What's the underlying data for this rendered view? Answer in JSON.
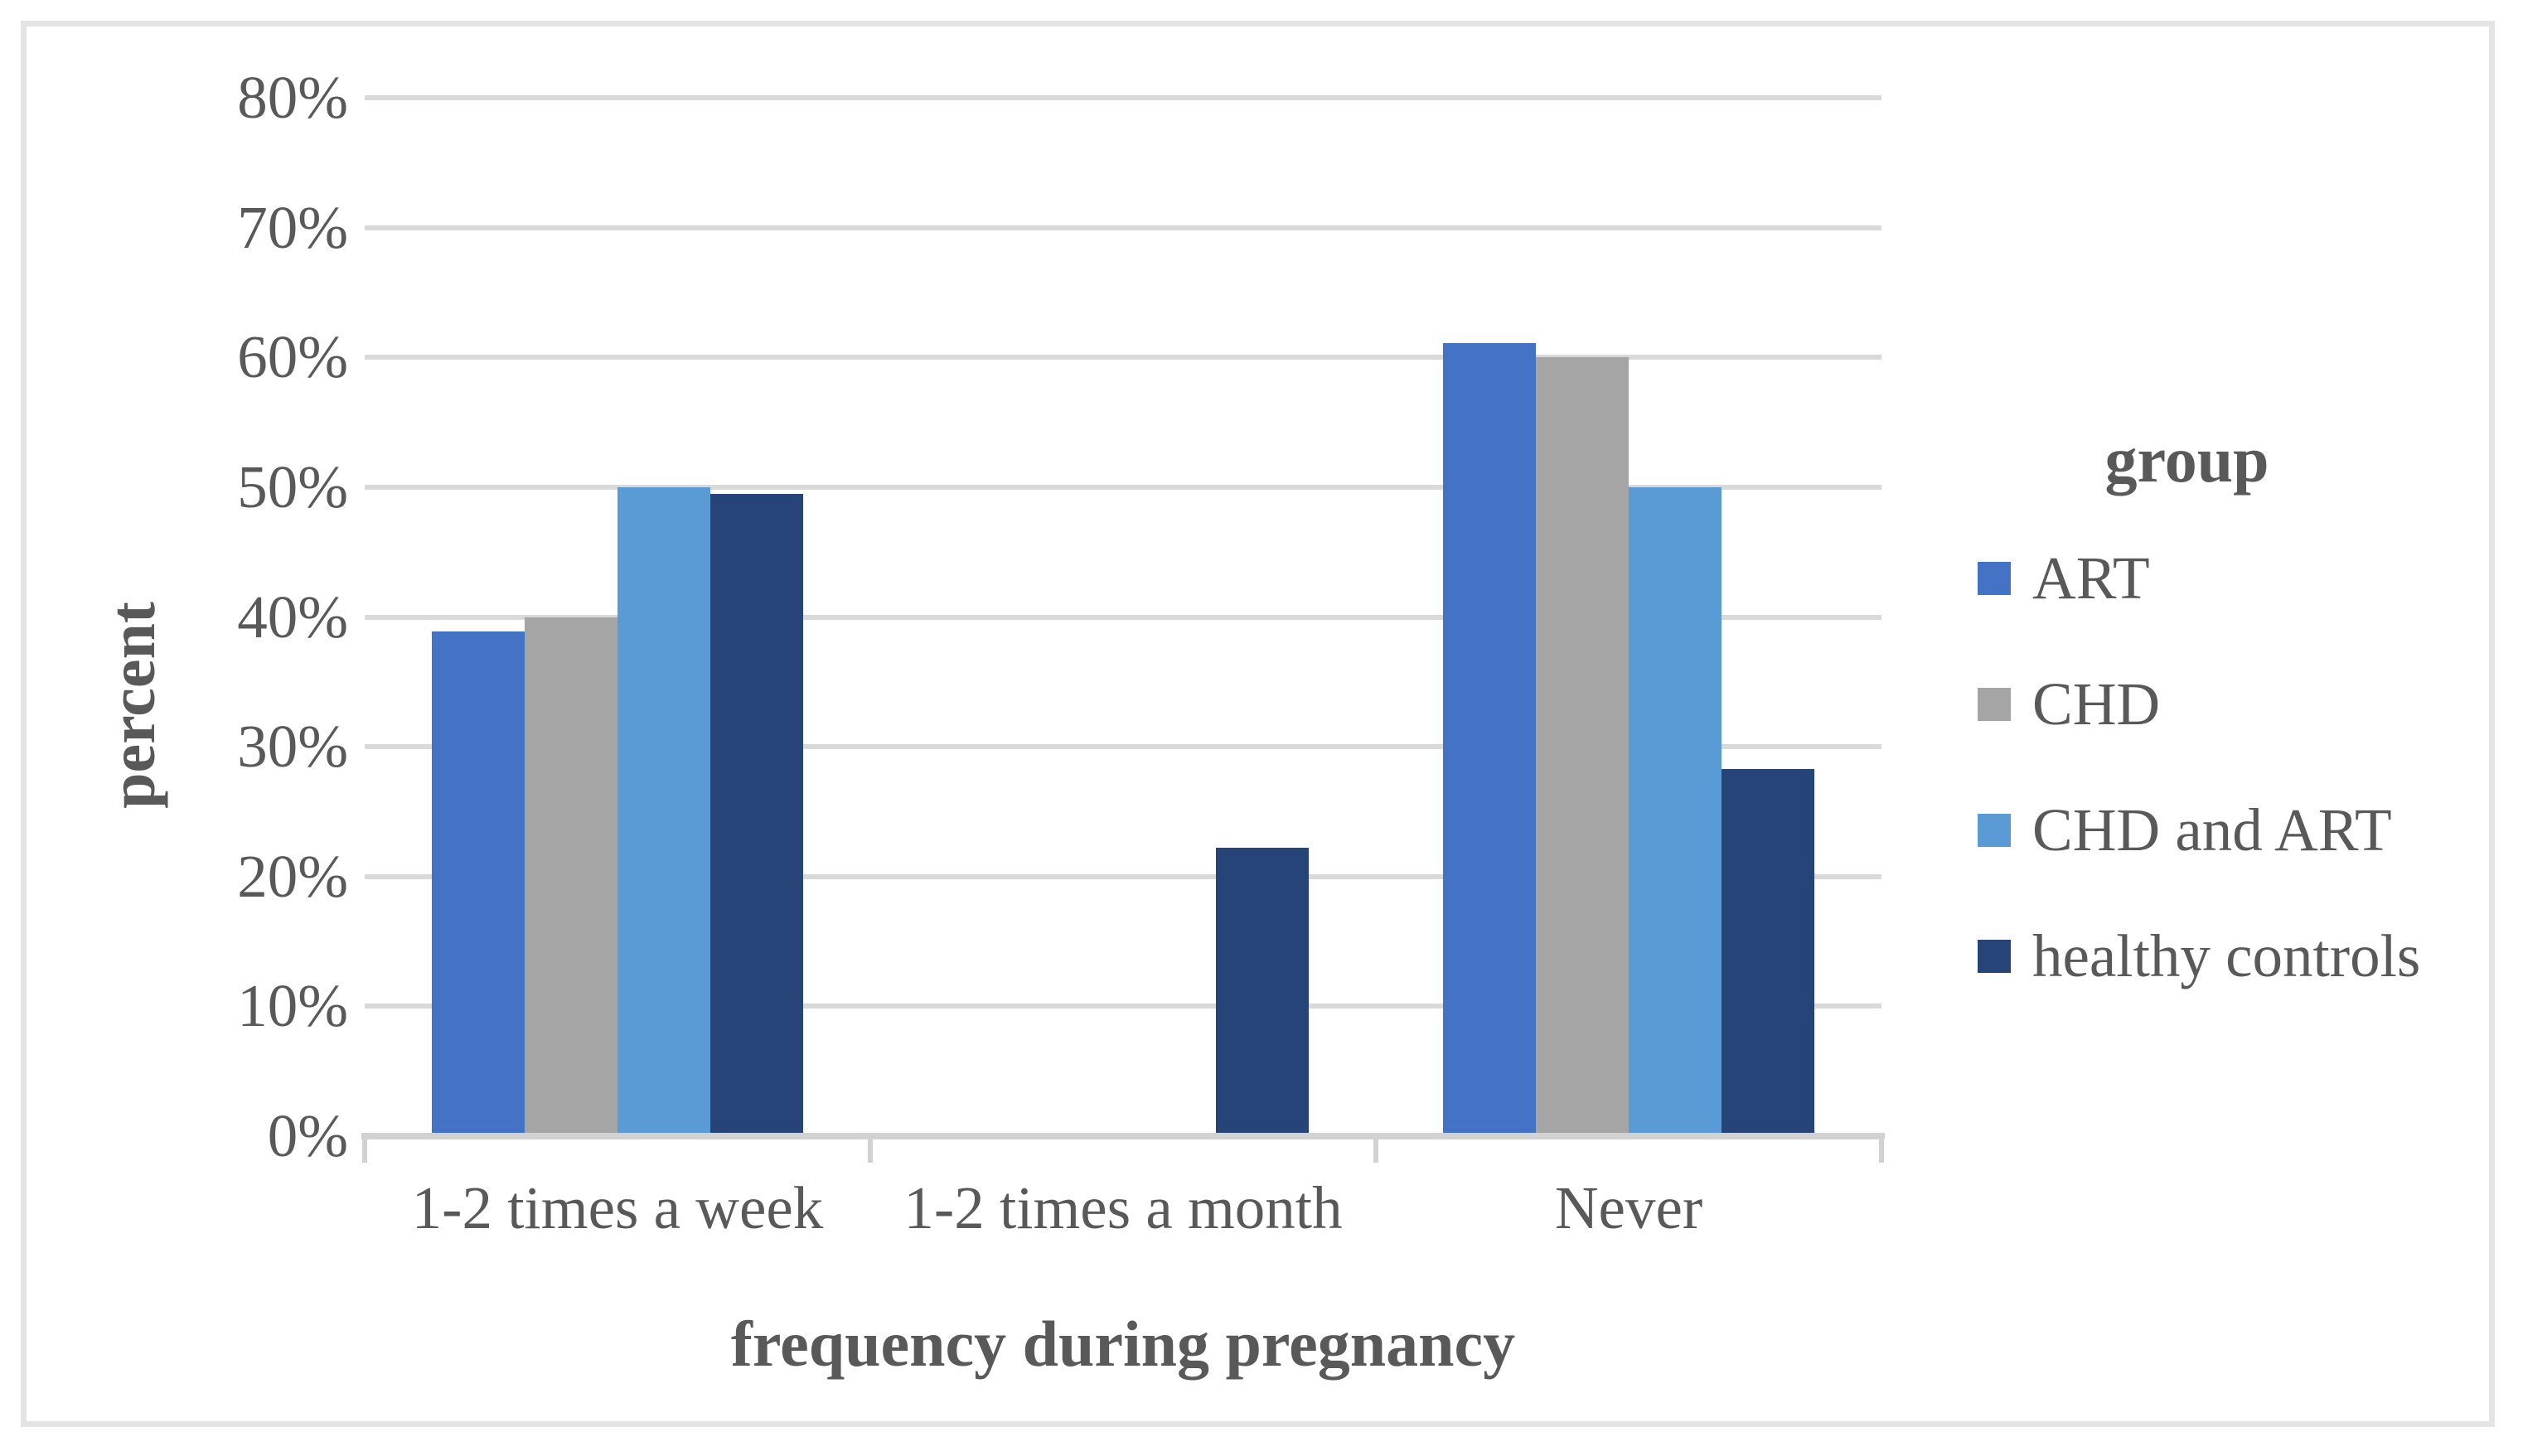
{
  "figure": {
    "background_color": "#FFFFFF",
    "border_color": "#E4E4E4",
    "text_color": "#595959"
  },
  "chart_data": {
    "type": "bar",
    "title": "",
    "categories": [
      "1-2 times a week",
      "1-2 times a month",
      "Never"
    ],
    "series": [
      {
        "name": "ART",
        "color": "#4472C4",
        "values": [
          38.9,
          0,
          61.1
        ]
      },
      {
        "name": "CHD",
        "color": "#A5A5A5",
        "values": [
          40,
          0,
          60
        ]
      },
      {
        "name": "CHD and ART",
        "color": "#5B9BD5",
        "values": [
          50,
          0,
          50
        ]
      },
      {
        "name": "healthy controls",
        "color": "#264478",
        "values": [
          49.5,
          22.2,
          28.3
        ]
      }
    ],
    "xlabel": "frequency during pregnancy",
    "ylabel": "percent",
    "ylim": [
      0,
      80
    ],
    "ytick_step": 10,
    "yticklabels": [
      "0%",
      "10%",
      "20%",
      "30%",
      "40%",
      "50%",
      "60%",
      "70%",
      "80%"
    ],
    "grid": true,
    "gridline_color": "#D9D9D9",
    "axis_line_color": "#D2D2D2",
    "legend_title": "group",
    "legend_position": "right"
  }
}
